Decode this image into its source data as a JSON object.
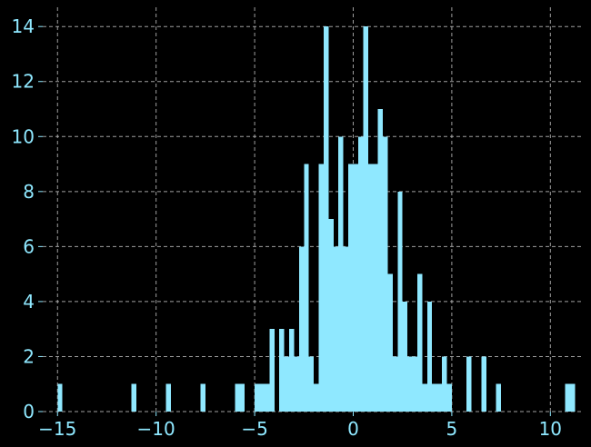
{
  "colors": {
    "background": "#000000",
    "bar": "#8fe8ff",
    "text": "#8fe8ff",
    "grid": "#bbbbbb"
  },
  "chart_data": {
    "type": "bar",
    "title": "",
    "xlabel": "",
    "ylabel": "",
    "grid": true,
    "grid_style": "dashed",
    "xlim": [
      -15.75,
      11.6
    ],
    "ylim": [
      0,
      14.7
    ],
    "xticks": [
      -15,
      -10,
      -5,
      0,
      5,
      10
    ],
    "xtick_labels": [
      "−15",
      "−10",
      "−5",
      "0",
      "5",
      "10"
    ],
    "yticks": [
      0,
      2,
      4,
      6,
      8,
      10,
      12,
      14
    ],
    "ytick_labels": [
      "0",
      "2",
      "4",
      "6",
      "8",
      "10",
      "12",
      "14"
    ],
    "bin_width": 0.25,
    "bars": [
      {
        "x": -15.0,
        "count": 1
      },
      {
        "x": -11.25,
        "count": 1
      },
      {
        "x": -9.5,
        "count": 1
      },
      {
        "x": -7.75,
        "count": 1
      },
      {
        "x": -6.0,
        "count": 1
      },
      {
        "x": -5.75,
        "count": 1
      },
      {
        "x": -5.0,
        "count": 1
      },
      {
        "x": -4.75,
        "count": 1
      },
      {
        "x": -4.5,
        "count": 1
      },
      {
        "x": -4.25,
        "count": 3
      },
      {
        "x": -3.75,
        "count": 3
      },
      {
        "x": -3.5,
        "count": 2
      },
      {
        "x": -3.25,
        "count": 3
      },
      {
        "x": -3.0,
        "count": 2
      },
      {
        "x": -2.75,
        "count": 6
      },
      {
        "x": -2.5,
        "count": 9
      },
      {
        "x": -2.25,
        "count": 2
      },
      {
        "x": -2.0,
        "count": 1
      },
      {
        "x": -1.75,
        "count": 9
      },
      {
        "x": -1.5,
        "count": 14
      },
      {
        "x": -1.25,
        "count": 7
      },
      {
        "x": -1.0,
        "count": 6
      },
      {
        "x": -0.75,
        "count": 10
      },
      {
        "x": -0.5,
        "count": 6
      },
      {
        "x": -0.25,
        "count": 9
      },
      {
        "x": 0.0,
        "count": 9
      },
      {
        "x": 0.25,
        "count": 10
      },
      {
        "x": 0.5,
        "count": 14
      },
      {
        "x": 0.75,
        "count": 9
      },
      {
        "x": 1.0,
        "count": 9
      },
      {
        "x": 1.25,
        "count": 11
      },
      {
        "x": 1.5,
        "count": 10
      },
      {
        "x": 1.75,
        "count": 5
      },
      {
        "x": 2.0,
        "count": 2
      },
      {
        "x": 2.25,
        "count": 8
      },
      {
        "x": 2.5,
        "count": 4
      },
      {
        "x": 2.75,
        "count": 2
      },
      {
        "x": 3.0,
        "count": 2
      },
      {
        "x": 3.25,
        "count": 5
      },
      {
        "x": 3.5,
        "count": 1
      },
      {
        "x": 3.75,
        "count": 4
      },
      {
        "x": 4.0,
        "count": 1
      },
      {
        "x": 4.25,
        "count": 1
      },
      {
        "x": 4.5,
        "count": 2
      },
      {
        "x": 4.75,
        "count": 1
      },
      {
        "x": 5.75,
        "count": 2
      },
      {
        "x": 6.5,
        "count": 2
      },
      {
        "x": 7.25,
        "count": 1
      },
      {
        "x": 10.75,
        "count": 1
      },
      {
        "x": 11.0,
        "count": 1
      }
    ]
  }
}
